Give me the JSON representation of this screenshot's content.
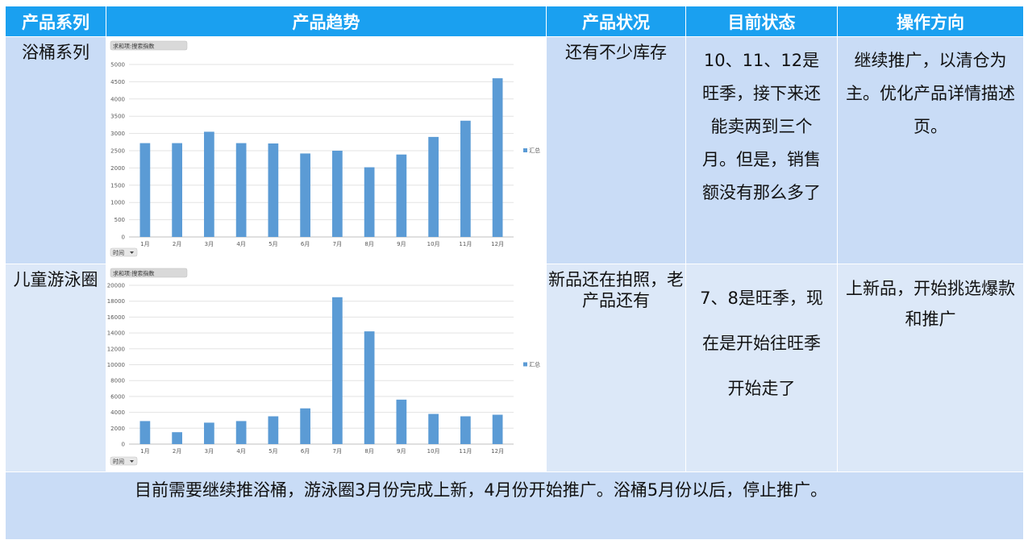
{
  "headers": [
    "产品系列",
    "产品趋势",
    "产品状况",
    "目前状态",
    "操作方向"
  ],
  "rows": [
    {
      "series_name": "浴桶系列",
      "condition": "还有不少库存",
      "current_status": "10、11、12是旺季，接下来还能卖两到三个月。但是，销售额没有那么多了",
      "direction": "继续推广，以清仓为主。优化产品详情描述页。"
    },
    {
      "series_name": "儿童游泳圈",
      "condition": "新品还在拍照，老产品还有",
      "current_status": "7、8是旺季，现在是开始往旺季开始走了",
      "direction": "上新品，开始挑选爆款和推广"
    }
  ],
  "footer": "目前需要继续推浴桶，游泳圈3月份完成上新，4月份开始推广。浴桶5月份以后，停止推广。",
  "colors": {
    "header_bg": "#1aa0f0",
    "row_bg": "#c9dcf6",
    "bar": "#5b9bd5"
  },
  "chart_data": [
    {
      "type": "bar",
      "field_button": "求和项:搜索指数",
      "axis_button": "时间",
      "legend": "汇总",
      "legend_position": "right",
      "grid": true,
      "categories": [
        "1月",
        "2月",
        "3月",
        "4月",
        "5月",
        "6月",
        "7月",
        "8月",
        "9月",
        "10月",
        "11月",
        "12月"
      ],
      "series": [
        {
          "name": "汇总",
          "values": [
            2720,
            2720,
            3050,
            2720,
            2710,
            2420,
            2500,
            2020,
            2390,
            2900,
            3370,
            4600
          ]
        }
      ],
      "y_ticks": [
        0,
        500,
        1000,
        1500,
        2000,
        2500,
        3000,
        3500,
        4000,
        4500,
        5000
      ],
      "ylim": [
        0,
        5000
      ]
    },
    {
      "type": "bar",
      "field_button": "求和项:搜索指数",
      "axis_button": "时间",
      "legend": "汇总",
      "legend_position": "right",
      "grid": true,
      "categories": [
        "1月",
        "2月",
        "3月",
        "4月",
        "5月",
        "6月",
        "7月",
        "8月",
        "9月",
        "10月",
        "11月",
        "12月"
      ],
      "series": [
        {
          "name": "汇总",
          "values": [
            2900,
            1500,
            2700,
            2900,
            3500,
            4500,
            18500,
            14200,
            5600,
            3800,
            3500,
            3700
          ]
        }
      ],
      "y_ticks": [
        0,
        2000,
        4000,
        6000,
        8000,
        10000,
        12000,
        14000,
        16000,
        18000,
        20000
      ],
      "ylim": [
        0,
        20000
      ]
    }
  ]
}
